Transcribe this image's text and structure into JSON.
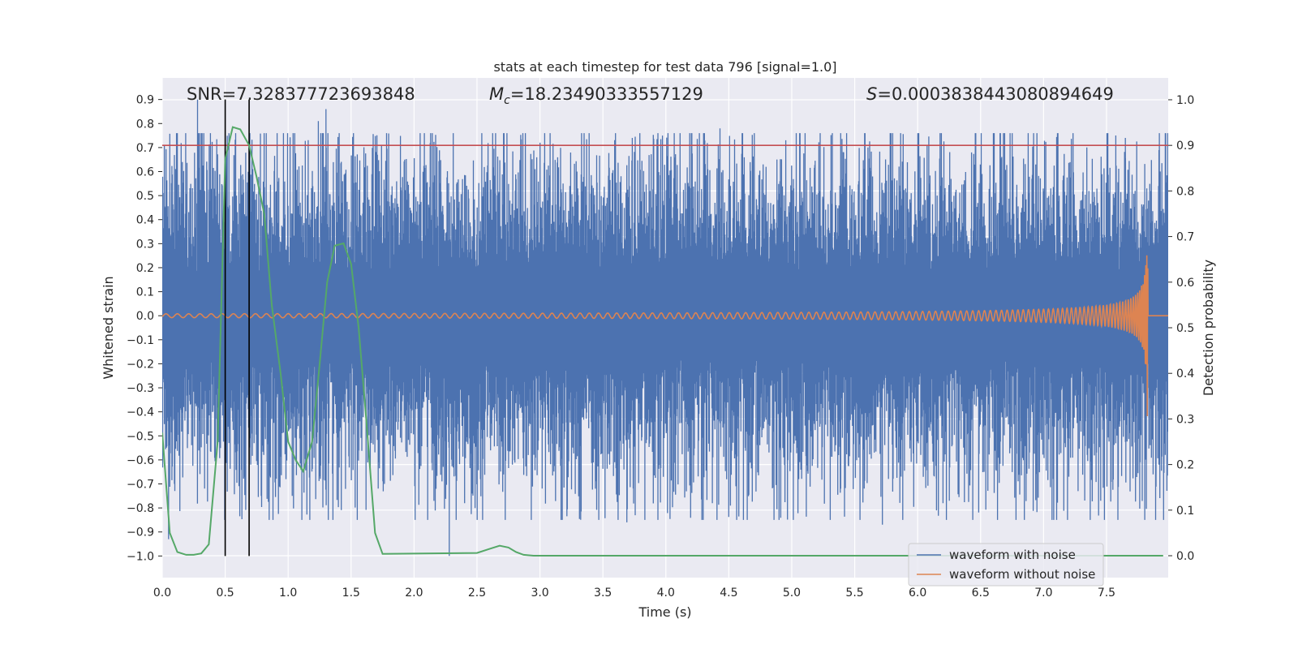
{
  "chart_data": {
    "type": "line",
    "title": "stats at each timestep for test data 796 [signal=1.0]",
    "xlabel": "Time (s)",
    "ylabel": "Whitened strain",
    "ylabel_right": "Detection probability",
    "xlim": [
      0.0,
      7.99
    ],
    "ylim": [
      -1.09,
      0.99
    ],
    "ylim_right": [
      -0.048,
      1.048
    ],
    "x_ticks": [
      "0.0",
      "0.5",
      "1.0",
      "1.5",
      "2.0",
      "2.5",
      "3.0",
      "3.5",
      "4.0",
      "4.5",
      "5.0",
      "5.5",
      "6.0",
      "6.5",
      "7.0",
      "7.5"
    ],
    "y_ticks": [
      "0.9",
      "0.8",
      "0.7",
      "0.6",
      "0.5",
      "0.4",
      "0.3",
      "0.2",
      "0.1",
      "0.0",
      "−0.1",
      "−0.2",
      "−0.3",
      "−0.4",
      "−0.5",
      "−0.6",
      "−0.7",
      "−0.8",
      "−0.9",
      "−1.0"
    ],
    "y_right_ticks": [
      "1.0",
      "0.9",
      "0.8",
      "0.7",
      "0.6",
      "0.5",
      "0.4",
      "0.3",
      "0.2",
      "0.1",
      "0.0"
    ],
    "annotations": {
      "snr": "SNR=7.328377723693848",
      "mc_symbol": "M",
      "mc_sub": "c",
      "mc_value": "=18.23490333557129",
      "s_symbol": "S",
      "s_value": "=0.0003838443080894649"
    },
    "threshold_line": {
      "value": 0.9,
      "axis": "right",
      "color": "#c44e52"
    },
    "vertical_markers": [
      0.5,
      0.69
    ],
    "noise_summary": {
      "typical_envelope": 0.35,
      "extreme_peaks": [
        {
          "x": 0.28,
          "y": 0.9
        },
        {
          "x": 1.3,
          "y": 0.86
        },
        {
          "x": 1.24,
          "y": 0.81
        },
        {
          "x": 4.43,
          "y": 0.78
        },
        {
          "x": 7.65,
          "y": 0.74
        },
        {
          "x": 0.05,
          "y": -0.93
        },
        {
          "x": 2.28,
          "y": -1.0
        },
        {
          "x": 3.69,
          "y": -0.86
        },
        {
          "x": 5.72,
          "y": -0.87
        },
        {
          "x": 6.15,
          "y": -0.81
        }
      ]
    },
    "chirp_end": 7.83,
    "series": [
      {
        "name": "waveform with noise",
        "color": "#4c72b0",
        "axis": "left"
      },
      {
        "name": "waveform without noise",
        "color": "#dd8452",
        "axis": "left"
      },
      {
        "name": "detection probability",
        "color": "#55a868",
        "axis": "right",
        "x": [
          0.0,
          0.06,
          0.12,
          0.19,
          0.25,
          0.31,
          0.37,
          0.44,
          0.5,
          0.56,
          0.62,
          0.69,
          0.75,
          0.81,
          0.87,
          0.94,
          1.0,
          1.06,
          1.12,
          1.19,
          1.25,
          1.31,
          1.37,
          1.44,
          1.5,
          1.56,
          1.62,
          1.69,
          1.75,
          2.5,
          2.6,
          2.68,
          2.75,
          2.81,
          2.87,
          2.95,
          7.95
        ],
        "values": [
          0.27,
          0.05,
          0.008,
          0.002,
          0.002,
          0.005,
          0.025,
          0.25,
          0.87,
          0.94,
          0.935,
          0.9,
          0.83,
          0.75,
          0.55,
          0.4,
          0.25,
          0.21,
          0.185,
          0.25,
          0.42,
          0.6,
          0.68,
          0.685,
          0.64,
          0.5,
          0.3,
          0.05,
          0.004,
          0.006,
          0.015,
          0.022,
          0.018,
          0.008,
          0.002,
          0.0,
          0.0
        ]
      }
    ],
    "legend_location": "lower right"
  }
}
